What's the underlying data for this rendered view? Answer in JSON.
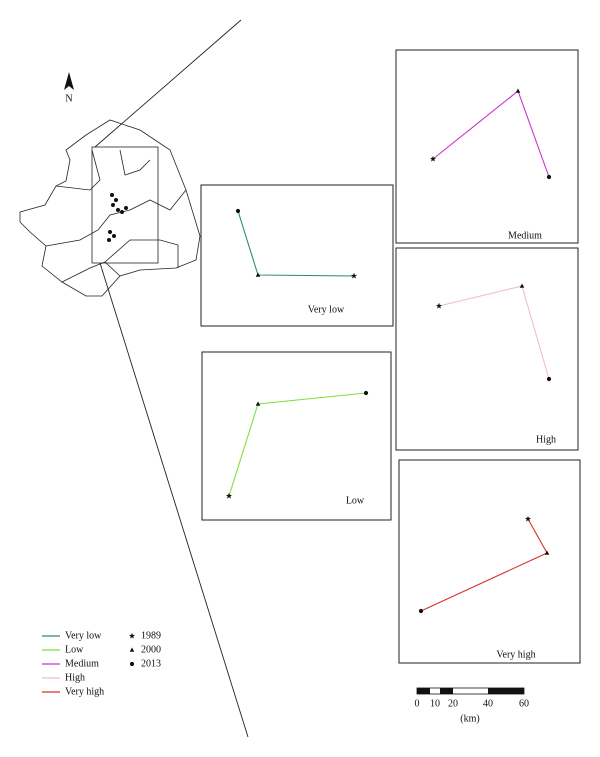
{
  "north_arrow": {
    "label": "N"
  },
  "panels": [
    {
      "label": "Very low",
      "color": "#2e8b6f"
    },
    {
      "label": "Medium",
      "color": "#cc33cc"
    },
    {
      "label": "High",
      "color": "#f2bccb"
    },
    {
      "label": "Low",
      "color": "#7ee03a"
    },
    {
      "label": "Very high",
      "color": "#d8312a"
    }
  ],
  "legend": {
    "lines": [
      {
        "label": "Very low",
        "color": "#2e8b6f"
      },
      {
        "label": "Low",
        "color": "#7ee03a"
      },
      {
        "label": "Medium",
        "color": "#cc33cc"
      },
      {
        "label": "High",
        "color": "#f2bccb"
      },
      {
        "label": "Very high",
        "color": "#d8312a"
      }
    ],
    "years": [
      "1989",
      "2000",
      "2013"
    ]
  },
  "scale": {
    "ticks": [
      "0",
      "10",
      "20",
      "40",
      "60"
    ],
    "unit": "(km)"
  }
}
